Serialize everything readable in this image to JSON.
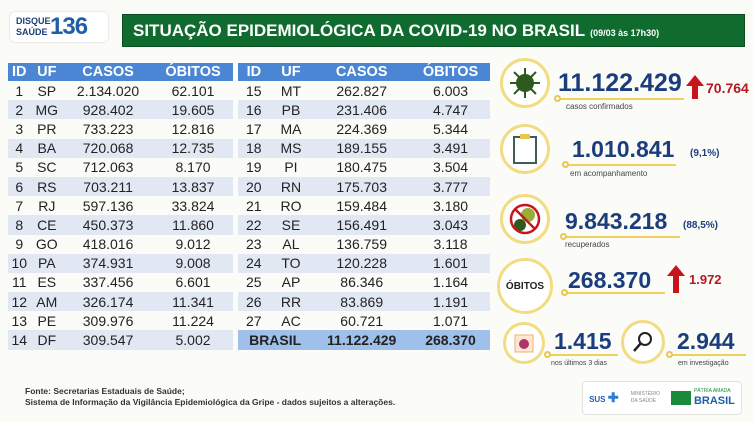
{
  "logo": {
    "line1": "DISQUE",
    "line2": "SAÚDE",
    "number": "136"
  },
  "header": {
    "title": "SITUAÇÃO EPIDEMIOLÓGICA DA COVID-19 NO BRASIL",
    "date": "(09/03 às 17h30)"
  },
  "table": {
    "columns": [
      "ID",
      "UF",
      "CASOS",
      "ÓBITOS"
    ],
    "rows": [
      [
        "1",
        "SP",
        "2.134.020",
        "62.101"
      ],
      [
        "2",
        "MG",
        "928.402",
        "19.605"
      ],
      [
        "3",
        "PR",
        "733.223",
        "12.816"
      ],
      [
        "4",
        "BA",
        "720.068",
        "12.735"
      ],
      [
        "5",
        "SC",
        "712.063",
        "8.170"
      ],
      [
        "6",
        "RS",
        "703.211",
        "13.837"
      ],
      [
        "7",
        "RJ",
        "597.136",
        "33.824"
      ],
      [
        "8",
        "CE",
        "450.373",
        "11.860"
      ],
      [
        "9",
        "GO",
        "418.016",
        "9.012"
      ],
      [
        "10",
        "PA",
        "374.931",
        "9.008"
      ],
      [
        "11",
        "ES",
        "337.456",
        "6.601"
      ],
      [
        "12",
        "AM",
        "326.174",
        "11.341"
      ],
      [
        "13",
        "PE",
        "309.976",
        "11.224"
      ],
      [
        "14",
        "DF",
        "309.547",
        "5.002"
      ],
      [
        "15",
        "MT",
        "262.827",
        "6.003"
      ],
      [
        "16",
        "PB",
        "231.406",
        "4.747"
      ],
      [
        "17",
        "MA",
        "224.369",
        "5.344"
      ],
      [
        "18",
        "MS",
        "189.155",
        "3.491"
      ],
      [
        "19",
        "PI",
        "180.475",
        "3.504"
      ],
      [
        "20",
        "RN",
        "175.703",
        "3.777"
      ],
      [
        "21",
        "RO",
        "159.484",
        "3.180"
      ],
      [
        "22",
        "SE",
        "156.491",
        "3.043"
      ],
      [
        "23",
        "AL",
        "136.759",
        "3.118"
      ],
      [
        "24",
        "TO",
        "120.228",
        "1.601"
      ],
      [
        "25",
        "AP",
        "86.346",
        "1.164"
      ],
      [
        "26",
        "RR",
        "83.869",
        "1.191"
      ],
      [
        "27",
        "AC",
        "60.721",
        "1.071"
      ]
    ],
    "total": {
      "label": "BRASIL",
      "casos": "11.122.429",
      "obitos": "268.370"
    }
  },
  "stats": {
    "confirmed": {
      "value": "11.122.429",
      "label": "casos confirmados",
      "increase": "70.764"
    },
    "monitoring": {
      "value": "1.010.841",
      "pct": "(9,1%)",
      "label": "em acompanhamento"
    },
    "recovered": {
      "value": "9.843.218",
      "pct": "(88,5%)",
      "label": "recuperados"
    },
    "deaths": {
      "badge": "ÓBITOS",
      "value": "268.370",
      "increase": "1.972"
    },
    "recent": {
      "value": "1.415",
      "label": "nos últimos 3 dias"
    },
    "investigation": {
      "value": "2.944",
      "label": "em investigação"
    }
  },
  "source": {
    "line1": "Fonte: Secretarias Estaduais de Saúde;",
    "line2": "Sistema de Informação da Vigilância Epidemiológica da Gripe - dados sujeitos a alterações."
  },
  "footer": {
    "sus": "SUS",
    "ministry": "MINISTÉRIO DA SAÚDE",
    "brand1": "PÁTRIA AMADA",
    "brand2": "BRASIL"
  },
  "colors": {
    "banner": "#0f6b2e",
    "table_header": "#4a86d4",
    "number": "#1b3d7e",
    "increase": "#c8151d",
    "ring": "#f2dc82"
  }
}
